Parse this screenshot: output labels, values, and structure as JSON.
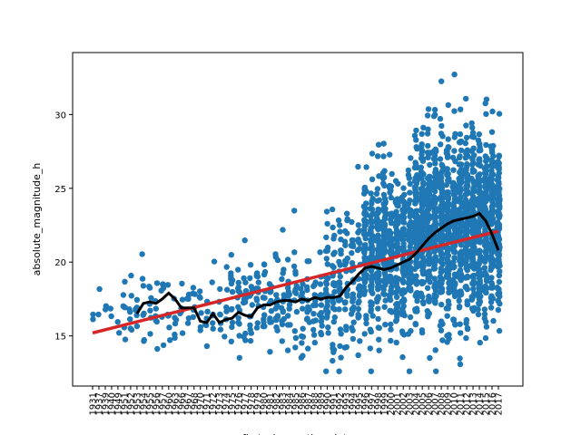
{
  "chart_data": {
    "type": "scatter",
    "title": "",
    "xlabel": "first_observation_date",
    "ylabel": "absolute_magnitude_h",
    "x_tick_labels": [
      "1931",
      "1937",
      "1939",
      "1940",
      "1949",
      "1951",
      "1952",
      "1953",
      "1954",
      "1955",
      "1956",
      "1957",
      "1960",
      "1963",
      "1966",
      "1967",
      "1968",
      "1970",
      "1971",
      "1972",
      "1973",
      "1974",
      "1975",
      "1976",
      "1977",
      "1978",
      "1979",
      "1980",
      "1981",
      "1982",
      "1983",
      "1984",
      "1985",
      "1986",
      "1987",
      "1988",
      "1989",
      "1990",
      "1991",
      "1992",
      "1993",
      "1994",
      "1995",
      "1996",
      "1997",
      "1998",
      "1999",
      "2000",
      "2001",
      "2002",
      "2003",
      "2004",
      "2005",
      "2006",
      "2007",
      "2008",
      "2009",
      "2010",
      "2011",
      "2012",
      "2013",
      "2014",
      "2015",
      "2016",
      "2017"
    ],
    "y_ticks": [
      15,
      20,
      25,
      30
    ],
    "ylim": [
      11.6,
      34.2
    ],
    "scatter_color": "#1f77b4",
    "regression_line": {
      "color": "#d62728",
      "x_start": "1931",
      "x_end": "2017",
      "y_start": 15.2,
      "y_end": 22.1
    },
    "rolling_mean": {
      "color": "#000000",
      "x": [
        "1953",
        "1954",
        "1955",
        "1956",
        "1957",
        "1960",
        "1963",
        "1966",
        "1967",
        "1968",
        "1970",
        "1971",
        "1972",
        "1973",
        "1974",
        "1975",
        "1976",
        "1977",
        "1978",
        "1979",
        "1980",
        "1981",
        "1982",
        "1983",
        "1984",
        "1985",
        "1986",
        "1987",
        "1988",
        "1989",
        "1990",
        "1991",
        "1992",
        "1993",
        "1994",
        "1995",
        "1996",
        "1997",
        "1998",
        "1999",
        "2000",
        "2001",
        "2002",
        "2003",
        "2004",
        "2005",
        "2006",
        "2007",
        "2008",
        "2009",
        "2010",
        "2011",
        "2012",
        "2013",
        "2014",
        "2015",
        "2016",
        "2017"
      ],
      "y": [
        16.5,
        17.2,
        17.3,
        17.2,
        17.5,
        17.9,
        17.5,
        16.9,
        16.9,
        16.9,
        16.0,
        15.9,
        16.5,
        15.9,
        16.1,
        16.2,
        16.6,
        16.4,
        16.3,
        16.9,
        17.1,
        17.1,
        17.3,
        17.4,
        17.4,
        17.3,
        17.5,
        17.4,
        17.6,
        17.5,
        17.6,
        17.6,
        17.7,
        18.3,
        18.7,
        19.2,
        19.6,
        19.7,
        19.6,
        19.5,
        19.6,
        19.8,
        20.0,
        20.2,
        20.6,
        21.1,
        21.6,
        22.0,
        22.3,
        22.6,
        22.8,
        22.9,
        23.0,
        23.1,
        23.3,
        22.8,
        21.9,
        20.8
      ]
    }
  }
}
